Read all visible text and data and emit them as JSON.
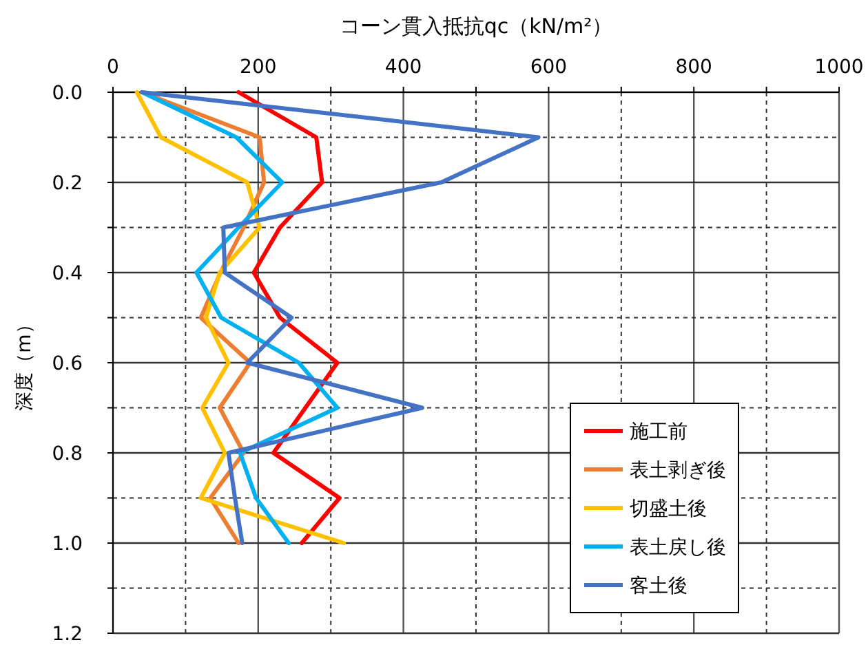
{
  "chart_data": {
    "type": "line",
    "xlabel": "コーン貫入抵抗qc（kN/m²）",
    "ylabel": "深度（m）",
    "xlim": [
      0,
      1000
    ],
    "xticks": [
      0,
      {
        "value": 100,
        "label": null
      },
      200,
      {
        "value": 300,
        "label": null
      },
      400,
      {
        "value": 500,
        "label": null
      },
      600,
      {
        "value": 700,
        "label": null
      },
      800,
      {
        "value": 900,
        "label": null
      },
      1000
    ],
    "ylim": [
      1.2,
      0
    ],
    "yticks": [
      {
        "value": 0,
        "label": "0.0"
      },
      {
        "value": 0.1,
        "label": null
      },
      0.2,
      {
        "value": 0.3,
        "label": null
      },
      0.4,
      {
        "value": 0.5,
        "label": null
      },
      0.6,
      {
        "value": 0.7,
        "label": null
      },
      0.8,
      {
        "value": 0.9,
        "label": null
      },
      {
        "value": 1,
        "label": "1.0"
      },
      {
        "value": 1.1,
        "label": null
      },
      1.2
    ],
    "grid": true,
    "legend": "bottom right",
    "marker": "none",
    "line_style": "solid",
    "series": [
      {
        "name": "施工前",
        "color": "#ff0000",
        "x": [
          173,
          280,
          288,
          230,
          194,
          230,
          309,
          265,
          221,
          312,
          260
        ],
        "values": [
          0,
          0.1,
          0.2,
          0.3,
          0.4,
          0.5,
          0.6,
          0.7,
          0.8,
          0.9,
          1.0
        ]
      },
      {
        "name": "表土剥ぎ後",
        "color": "#ed7d31",
        "x": [
          40,
          202,
          208,
          180,
          148,
          121,
          189,
          147,
          180,
          134,
          173
        ],
        "values": [
          0,
          0.1,
          0.2,
          0.3,
          0.4,
          0.5,
          0.6,
          0.7,
          0.8,
          0.9,
          1.0
        ]
      },
      {
        "name": "切盛土後",
        "color": "#ffc000",
        "x": [
          33,
          66,
          185,
          202,
          147,
          128,
          159,
          123,
          154,
          121,
          318
        ],
        "values": [
          0,
          0.1,
          0.2,
          0.3,
          0.4,
          0.5,
          0.6,
          0.7,
          0.8,
          0.9,
          1.0
        ]
      },
      {
        "name": "表土戻し後",
        "color": "#00b0f0",
        "x": [
          40,
          170,
          233,
          173,
          115,
          149,
          256,
          309,
          175,
          197,
          242
        ],
        "values": [
          0,
          0.1,
          0.2,
          0.3,
          0.4,
          0.5,
          0.6,
          0.7,
          0.8,
          0.9,
          1.0
        ]
      },
      {
        "name": "客土後",
        "color": "#4472c4",
        "x": [
          40,
          586,
          452,
          152,
          154,
          246,
          185,
          426,
          159,
          168,
          178
        ],
        "values": [
          0,
          0.1,
          0.2,
          0.3,
          0.4,
          0.5,
          0.6,
          0.7,
          0.8,
          0.9,
          1.0
        ]
      }
    ]
  }
}
